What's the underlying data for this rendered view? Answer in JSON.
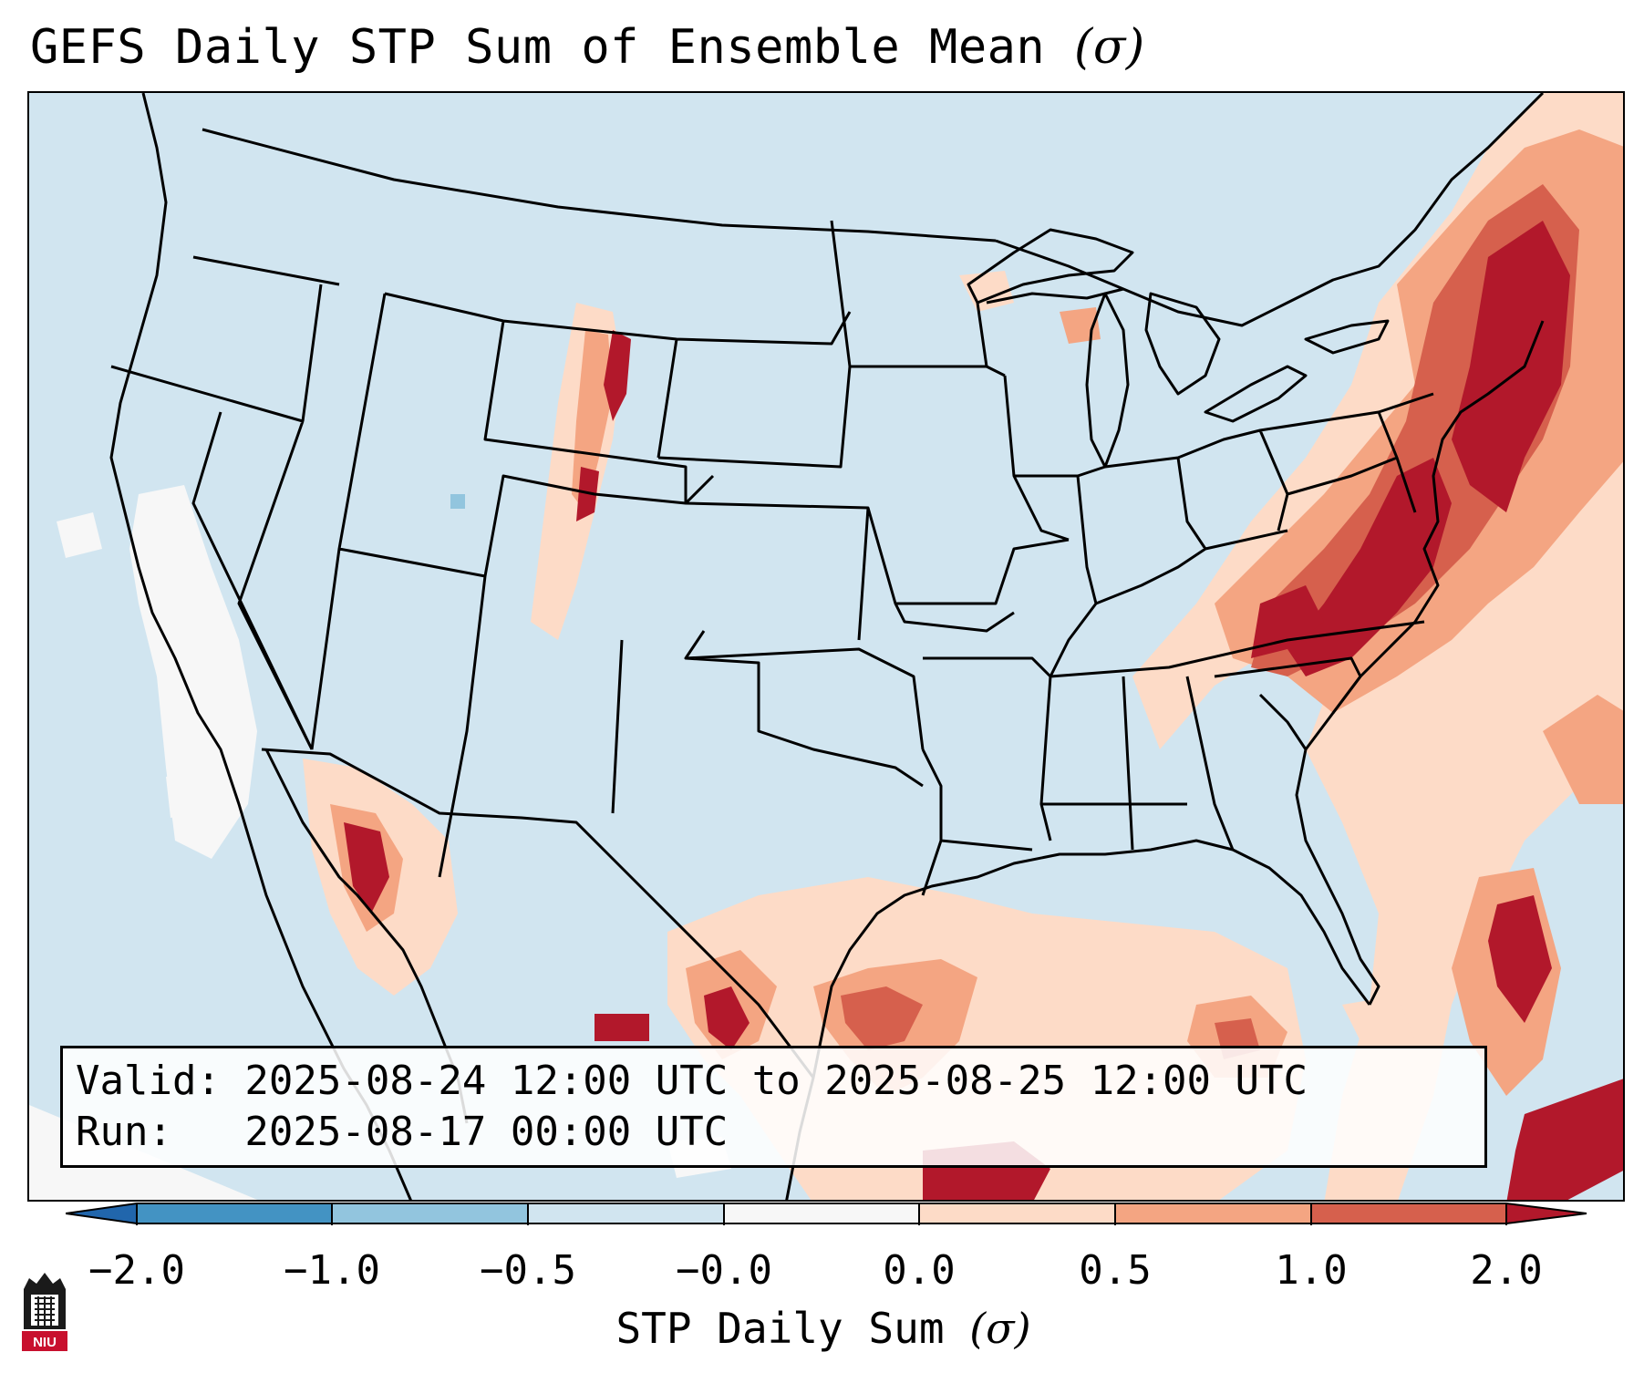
{
  "title": {
    "text": "GEFS Daily STP Sum of Ensemble Mean",
    "sigma": "(σ)"
  },
  "info_box": {
    "valid_line": "Valid: 2025-08-24 12:00 UTC to 2025-08-25 12:00 UTC",
    "run_line": "Run:   2025-08-17 00:00 UTC"
  },
  "colorbar": {
    "label": "STP Daily Sum",
    "label_sigma": "(σ)",
    "ticks": [
      "−2.0",
      "−1.0",
      "−0.5",
      "−0.0",
      "0.0",
      "0.5",
      "1.0",
      "2.0"
    ],
    "colors": [
      "#4393c3",
      "#92c5de",
      "#d1e5f0",
      "#f7f7f7",
      "#fddbc7",
      "#f4a582",
      "#d6604d"
    ],
    "extend_low_color": "#2166ac",
    "extend_high_color": "#b2182b"
  },
  "map": {
    "background_color": "#d1e5f0",
    "colors": {
      "white": "#f7f7f7",
      "pink": "#fddbc7",
      "salmon": "#f4a582",
      "red": "#d6604d",
      "darkred": "#b2182b",
      "blue": "#92c5de"
    }
  },
  "logo": {
    "text": "NIU"
  }
}
